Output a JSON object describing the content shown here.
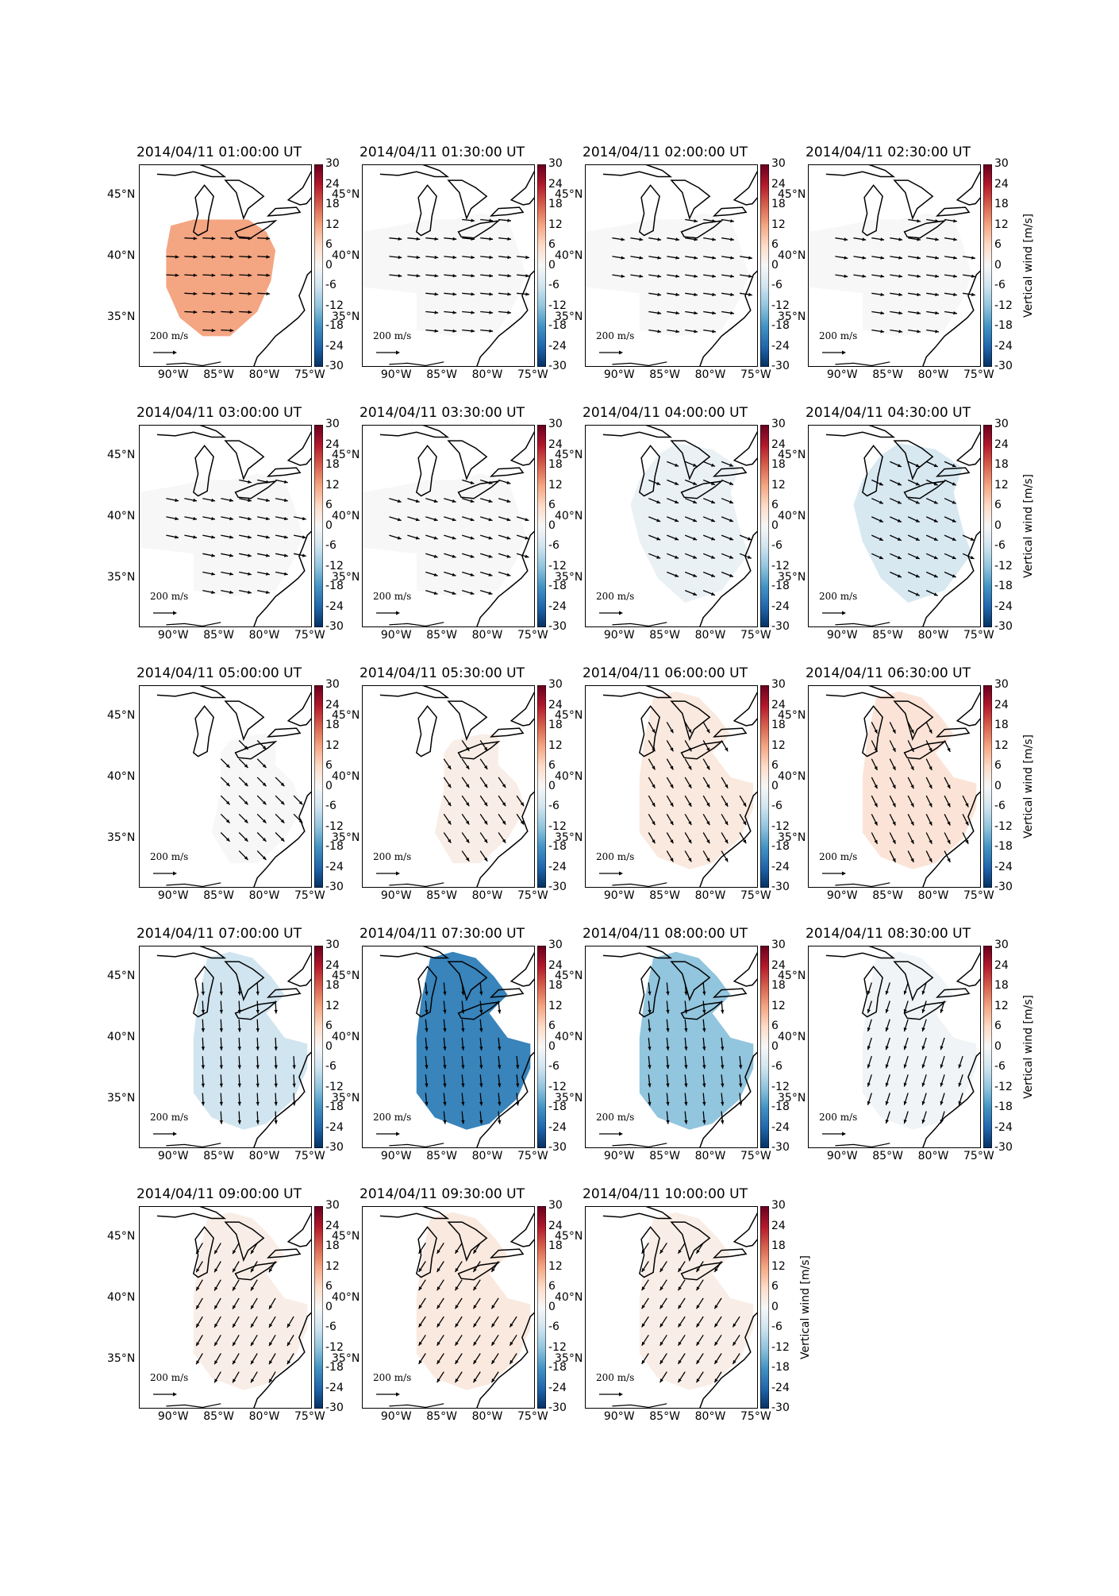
{
  "figure": {
    "colorbar_title": "Vertical wind [m/s]",
    "colorbar_ticks": [
      "30",
      "24",
      "18",
      "12",
      "6",
      "0",
      "-6",
      "-12",
      "-18",
      "-24",
      "-30"
    ],
    "lon_ticks": [
      "90°W",
      "85°W",
      "80°W",
      "75°W"
    ],
    "lat_ticks": [
      "45°N",
      "40°N",
      "35°N"
    ],
    "scale_label": "200 m/s",
    "colormap": "RdBu_r",
    "vmin": -30,
    "vmax": 30,
    "map_extent": {
      "lon": [
        -94,
        -75
      ],
      "lat": [
        31,
        47.5
      ]
    }
  },
  "panels": [
    {
      "title": "2014/04/11 01:00:00 UT",
      "value": 12,
      "shape": "blob_west",
      "wind_dir": [
        1,
        0.05
      ]
    },
    {
      "title": "2014/04/11 01:30:00 UT",
      "value": 0,
      "shape": "wide",
      "wind_dir": [
        1,
        0.1
      ]
    },
    {
      "title": "2014/04/11 02:00:00 UT",
      "value": 0,
      "shape": "wide",
      "wind_dir": [
        1,
        0.15
      ]
    },
    {
      "title": "2014/04/11 02:30:00 UT",
      "value": 0,
      "shape": "wide",
      "wind_dir": [
        1,
        0.15
      ]
    },
    {
      "title": "2014/04/11 03:00:00 UT",
      "value": 0,
      "shape": "wide",
      "wind_dir": [
        1,
        0.2
      ]
    },
    {
      "title": "2014/04/11 03:30:00 UT",
      "value": 0,
      "shape": "wide",
      "wind_dir": [
        1,
        0.3
      ]
    },
    {
      "title": "2014/04/11 04:00:00 UT",
      "value": -2,
      "shape": "mid",
      "wind_dir": [
        1,
        0.4
      ]
    },
    {
      "title": "2014/04/11 04:30:00 UT",
      "value": -5,
      "shape": "mid",
      "wind_dir": [
        1,
        0.45
      ]
    },
    {
      "title": "2014/04/11 05:00:00 UT",
      "value": 0,
      "shape": "east",
      "wind_dir": [
        0.7,
        0.7
      ]
    },
    {
      "title": "2014/04/11 05:30:00 UT",
      "value": 2,
      "shape": "east",
      "wind_dir": [
        0.55,
        0.8
      ]
    },
    {
      "title": "2014/04/11 06:00:00 UT",
      "value": 3,
      "shape": "east_full",
      "wind_dir": [
        0.5,
        0.85
      ]
    },
    {
      "title": "2014/04/11 06:30:00 UT",
      "value": 4,
      "shape": "east_full",
      "wind_dir": [
        0.45,
        0.9
      ]
    },
    {
      "title": "2014/04/11 07:00:00 UT",
      "value": -6,
      "shape": "east_full",
      "wind_dir": [
        0.05,
        1
      ]
    },
    {
      "title": "2014/04/11 07:30:00 UT",
      "value": -20,
      "shape": "east_full",
      "wind_dir": [
        0.1,
        1
      ]
    },
    {
      "title": "2014/04/11 08:00:00 UT",
      "value": -12,
      "shape": "east_full",
      "wind_dir": [
        0.1,
        1
      ]
    },
    {
      "title": "2014/04/11 08:30:00 UT",
      "value": -1,
      "shape": "east_full",
      "wind_dir": [
        -0.3,
        0.95
      ]
    },
    {
      "title": "2014/04/11 09:00:00 UT",
      "value": 2,
      "shape": "east_full",
      "wind_dir": [
        -0.5,
        0.85
      ]
    },
    {
      "title": "2014/04/11 09:30:00 UT",
      "value": 3,
      "shape": "east_full",
      "wind_dir": [
        -0.55,
        0.85
      ]
    },
    {
      "title": "2014/04/11 10:00:00 UT",
      "value": 2,
      "shape": "east_full",
      "wind_dir": [
        -0.55,
        0.85
      ]
    }
  ]
}
